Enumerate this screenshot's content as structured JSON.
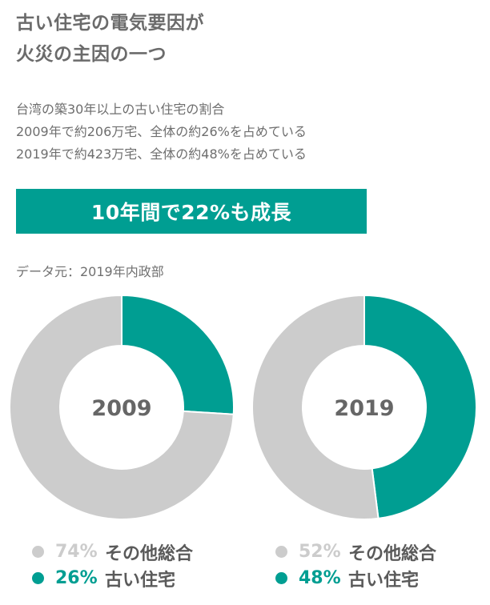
{
  "title_lines": [
    "古い住宅の電気要因が",
    "火災の主因の一つ"
  ],
  "description_lines": [
    "台湾の築30年以上の古い住宅の割合",
    "2009年で約206万宅、全体の約26%を占めている",
    "2019年で約423万宅、全体の約48%を占めている"
  ],
  "banner": "10年間で22%も成長",
  "source": "データ元：2019年内政部",
  "colors": {
    "accent": "#009e92",
    "other": "#cccccc",
    "hole_text": "#666666"
  },
  "chart_data": [
    {
      "type": "pie",
      "center_label": "2009",
      "categories": [
        "その他総合",
        "古い住宅"
      ],
      "values": [
        74,
        26
      ],
      "value_labels": [
        "74%",
        "26%"
      ],
      "colors": [
        "#cccccc",
        "#009e92"
      ]
    },
    {
      "type": "pie",
      "center_label": "2019",
      "categories": [
        "その他総合",
        "古い住宅"
      ],
      "values": [
        52,
        48
      ],
      "value_labels": [
        "52%",
        "48%"
      ],
      "colors": [
        "#cccccc",
        "#009e92"
      ]
    }
  ]
}
